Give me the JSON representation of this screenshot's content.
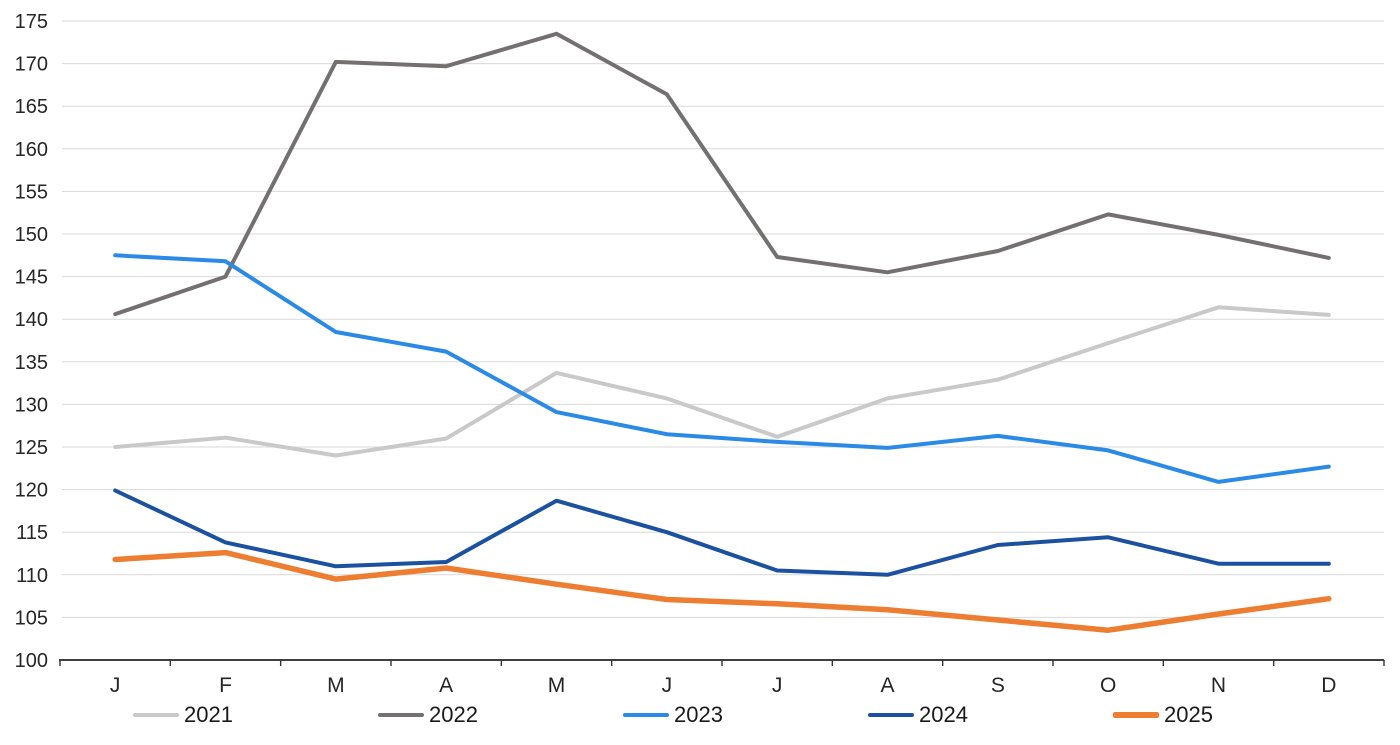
{
  "chart_data": {
    "type": "line",
    "title": "",
    "xlabel": "",
    "ylabel": "",
    "x_categories": [
      "J",
      "F",
      "M",
      "A",
      "M",
      "J",
      "J",
      "A",
      "S",
      "O",
      "N",
      "D"
    ],
    "y_axis": {
      "min": 100,
      "max": 175,
      "step": 5,
      "tick_labels": [
        "100",
        "105",
        "110",
        "115",
        "120",
        "125",
        "130",
        "135",
        "140",
        "145",
        "150",
        "155",
        "160",
        "165",
        "170",
        "175"
      ]
    },
    "grid": true,
    "legend_position": "bottom",
    "series": [
      {
        "name": "2021",
        "color": "#C9C9C9",
        "line_width": 4,
        "values": [
          125.0,
          126.1,
          124.0,
          126.0,
          133.7,
          130.7,
          126.2,
          130.7,
          132.9,
          137.2,
          141.4,
          140.5
        ]
      },
      {
        "name": "2022",
        "color": "#757070",
        "line_width": 4,
        "values": [
          140.6,
          145.0,
          170.2,
          169.7,
          173.5,
          166.4,
          147.3,
          145.5,
          148.0,
          152.3,
          149.9,
          147.2
        ]
      },
      {
        "name": "2023",
        "color": "#2A8AE6",
        "line_width": 4,
        "values": [
          147.5,
          146.8,
          138.5,
          136.2,
          129.1,
          126.5,
          125.6,
          124.9,
          126.3,
          124.6,
          120.9,
          122.7
        ]
      },
      {
        "name": "2024",
        "color": "#1C519F",
        "line_width": 4,
        "values": [
          119.9,
          113.8,
          111.0,
          111.5,
          118.7,
          115.0,
          110.5,
          110.0,
          113.5,
          114.4,
          111.3,
          111.3
        ]
      },
      {
        "name": "2025",
        "color": "#ED7D31",
        "line_width": 5.5,
        "values": [
          111.8,
          112.6,
          109.5,
          110.8,
          108.9,
          107.1,
          106.6,
          105.9,
          104.7,
          103.5,
          105.4,
          107.2
        ]
      }
    ]
  },
  "colors": {
    "background": "#FFFFFF",
    "grid": "#D9D9D9",
    "axis": "#000000",
    "tick": "#333333",
    "label": "#262626"
  }
}
